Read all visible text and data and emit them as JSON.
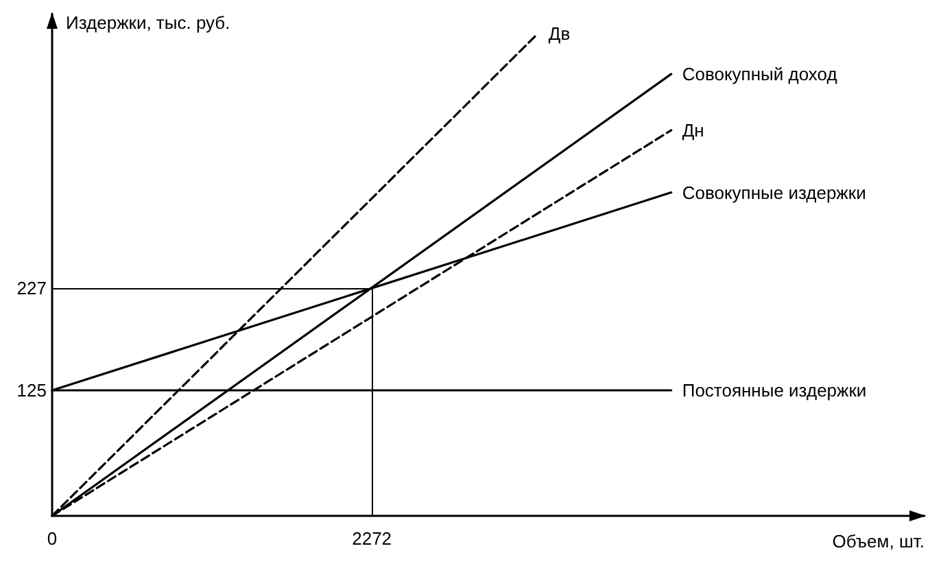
{
  "chart_data": {
    "type": "line",
    "xlabel": "Объем, шт.",
    "ylabel": "Издержки, тыс. руб.",
    "xlim": [
      0,
      6200
    ],
    "ylim": [
      0,
      500
    ],
    "xticks": [
      0,
      2272
    ],
    "yticks": [
      125,
      227
    ],
    "grid": false,
    "legend": false,
    "marker": "none",
    "series": [
      {
        "name": "Дв",
        "color": "#000000",
        "line_style": "dashed",
        "x": [
          0,
          3450
        ],
        "values": [
          0,
          480
        ]
      },
      {
        "name": "Совокупный доход",
        "color": "#000000",
        "line_style": "solid",
        "x": [
          0,
          4400
        ],
        "values": [
          0,
          440
        ]
      },
      {
        "name": "Дн",
        "color": "#000000",
        "line_style": "dashed",
        "x": [
          0,
          4400
        ],
        "values": [
          0,
          384
        ]
      },
      {
        "name": "Совокупные издержки",
        "color": "#000000",
        "line_style": "solid",
        "x": [
          0,
          4400
        ],
        "values": [
          125,
          322
        ]
      },
      {
        "name": "Постоянные издержки",
        "color": "#000000",
        "line_style": "solid",
        "x": [
          0,
          4400
        ],
        "values": [
          125,
          125
        ]
      }
    ],
    "ref_lines": [
      {
        "axis": "x",
        "value": 2272,
        "color": "#000000"
      },
      {
        "axis": "y",
        "value": 227,
        "color": "#000000"
      }
    ]
  }
}
